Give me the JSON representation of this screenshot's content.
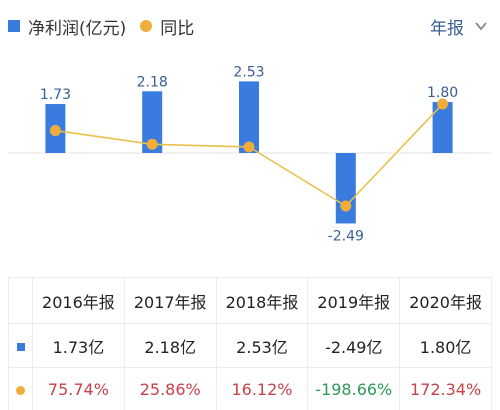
{
  "legend": {
    "bar_label": "净利润(亿元)",
    "line_label": "同比"
  },
  "period_select": {
    "label": "年报",
    "icon": "chevron-down-icon"
  },
  "colors": {
    "bar": "#3a7be0",
    "line": "#e8c24a",
    "dot": "#f0ad3c",
    "label": "#3a5f93",
    "positive": "#c8424b",
    "negative": "#2c9a55"
  },
  "chart_data": {
    "type": "bar",
    "categories": [
      "2016年报",
      "2017年报",
      "2018年报",
      "2019年报",
      "2020年报"
    ],
    "series": [
      {
        "name": "净利润(亿元)",
        "type": "bar",
        "values": [
          1.73,
          2.18,
          2.53,
          -2.49,
          1.8
        ],
        "labels": [
          "1.73",
          "2.18",
          "2.53",
          "-2.49",
          "1.80"
        ]
      },
      {
        "name": "同比",
        "type": "line",
        "values": [
          75.74,
          25.86,
          16.12,
          -198.66,
          172.34
        ]
      }
    ],
    "ylim": [
      -2.6,
      2.6
    ],
    "grid": false,
    "legend_position": "top-left"
  },
  "table": {
    "headers": [
      "2016年报",
      "2017年报",
      "2018年报",
      "2019年报",
      "2020年报"
    ],
    "profit_row": [
      "1.73亿",
      "2.18亿",
      "2.53亿",
      "-2.49亿",
      "1.80亿"
    ],
    "yoy_row": [
      "75.74%",
      "25.86%",
      "16.12%",
      "-198.66%",
      "172.34%"
    ]
  }
}
